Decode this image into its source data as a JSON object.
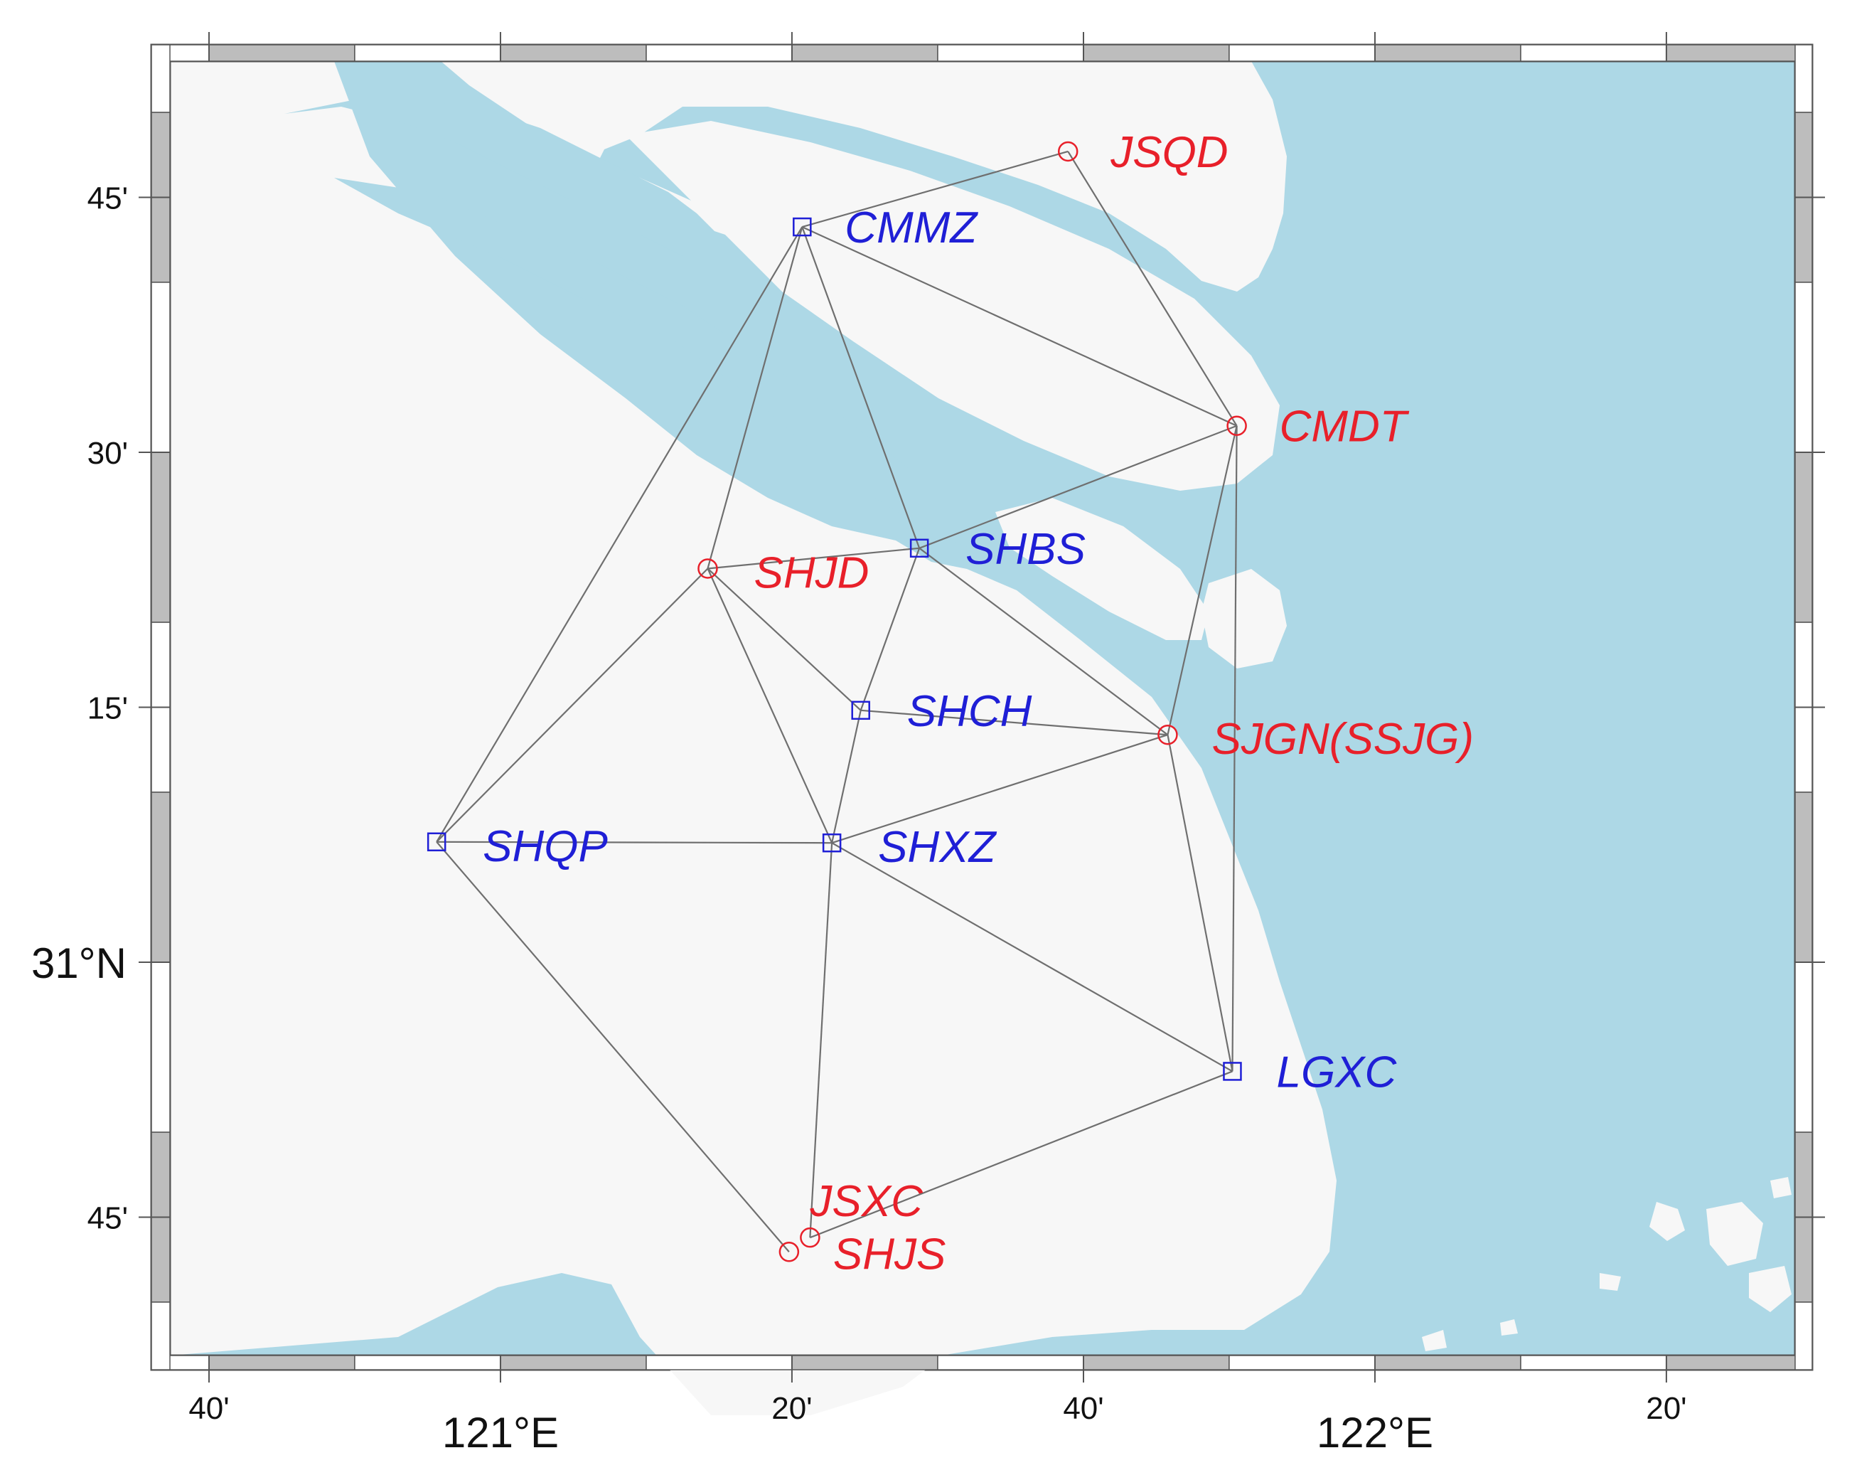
{
  "map": {
    "colors": {
      "water": "#add8e6",
      "land": "#f7f7f7",
      "frame": "#555555",
      "network_line": "#6f6f6f",
      "circle_station": "#e8202a",
      "square_station": "#1f1fd6"
    },
    "axes": {
      "lon_ticks": [
        {
          "lon": 120.6667,
          "label": "40'",
          "major": false
        },
        {
          "lon": 121.0,
          "label": "121°E",
          "major": true
        },
        {
          "lon": 121.3333,
          "label": "20'",
          "major": false
        },
        {
          "lon": 121.6667,
          "label": "40'",
          "major": false
        },
        {
          "lon": 122.0,
          "label": "122°E",
          "major": true
        },
        {
          "lon": 122.3333,
          "label": "20'",
          "major": false
        }
      ],
      "lat_ticks": [
        {
          "lat": 31.75,
          "label": "45'",
          "major": false
        },
        {
          "lat": 31.5,
          "label": "30'",
          "major": false
        },
        {
          "lat": 31.25,
          "label": "15'",
          "major": false
        },
        {
          "lat": 31.0,
          "label": "31°N",
          "major": true
        },
        {
          "lat": 30.75,
          "label": "45'",
          "major": false
        }
      ]
    },
    "stations": [
      {
        "id": "JSQD",
        "name": "JSQD",
        "symbol": "circle",
        "lon": 121.649,
        "lat": 31.795,
        "label_dx": 60,
        "label_dy": 0
      },
      {
        "id": "CMMZ",
        "name": "CMMZ",
        "symbol": "square",
        "lon": 121.345,
        "lat": 31.721,
        "label_dx": 60,
        "label_dy": 0
      },
      {
        "id": "CMDT",
        "name": "CMDT",
        "symbol": "circle",
        "lon": 121.842,
        "lat": 31.526,
        "label_dx": 60,
        "label_dy": 0
      },
      {
        "id": "SHBS",
        "name": "SHBS",
        "symbol": "square",
        "lon": 121.479,
        "lat": 31.406,
        "label_dx": 65,
        "label_dy": 0
      },
      {
        "id": "SHJD",
        "name": "SHJD",
        "symbol": "circle",
        "lon": 121.237,
        "lat": 31.386,
        "label_dx": 65,
        "label_dy": 5
      },
      {
        "id": "SHCH",
        "name": "SHCH",
        "symbol": "square",
        "lon": 121.412,
        "lat": 31.247,
        "label_dx": 65,
        "label_dy": 0
      },
      {
        "id": "SJGN",
        "name": "SJGN(SSJG)",
        "symbol": "circle",
        "lon": 121.763,
        "lat": 31.223,
        "label_dx": 62,
        "label_dy": 5
      },
      {
        "id": "SHQP",
        "name": "SHQP",
        "symbol": "square",
        "lon": 120.927,
        "lat": 31.118,
        "label_dx": 65,
        "label_dy": 5
      },
      {
        "id": "SHXZ",
        "name": "SHXZ",
        "symbol": "square",
        "lon": 121.379,
        "lat": 31.117,
        "label_dx": 65,
        "label_dy": 5
      },
      {
        "id": "LGXC",
        "name": "LGXC",
        "symbol": "square",
        "lon": 121.837,
        "lat": 30.893,
        "label_dx": 62,
        "label_dy": 0
      },
      {
        "id": "JSXC",
        "name": "JSXC",
        "symbol": "circle",
        "lon": 121.354,
        "lat": 30.73,
        "label_dx": 0,
        "label_dy": -52
      },
      {
        "id": "SHJS",
        "name": "SHJS",
        "symbol": "circle",
        "lon": 121.33,
        "lat": 30.716,
        "label_dx": 62,
        "label_dy": 2
      }
    ],
    "baselines": [
      [
        "JSQD",
        "CMMZ"
      ],
      [
        "JSQD",
        "CMDT"
      ],
      [
        "CMMZ",
        "CMDT"
      ],
      [
        "CMMZ",
        "SHQP"
      ],
      [
        "CMMZ",
        "SHJD"
      ],
      [
        "CMMZ",
        "SHBS"
      ],
      [
        "CMDT",
        "SHBS"
      ],
      [
        "CMDT",
        "SJGN"
      ],
      [
        "CMDT",
        "LGXC"
      ],
      [
        "SHJD",
        "SHBS"
      ],
      [
        "SHJD",
        "SHQP"
      ],
      [
        "SHJD",
        "SHCH"
      ],
      [
        "SHJD",
        "SHXZ"
      ],
      [
        "SHBS",
        "SHCH"
      ],
      [
        "SHBS",
        "SJGN"
      ],
      [
        "SHCH",
        "SJGN"
      ],
      [
        "SHCH",
        "SHXZ"
      ],
      [
        "SJGN",
        "SHXZ"
      ],
      [
        "SJGN",
        "LGXC"
      ],
      [
        "SHQP",
        "SHXZ"
      ],
      [
        "SHQP",
        "SHJS"
      ],
      [
        "SHXZ",
        "LGXC"
      ],
      [
        "SHXZ",
        "JSXC"
      ],
      [
        "LGXC",
        "JSXC"
      ]
    ]
  }
}
